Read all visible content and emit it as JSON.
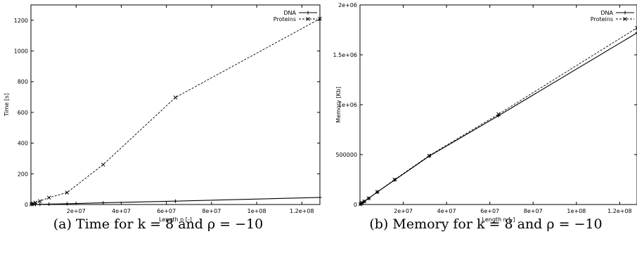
{
  "chart_data": [
    {
      "type": "line",
      "caption": "(a) Time for k = 8 and ρ = −10",
      "xlabel": "Length n [-]",
      "ylabel": "Time [s]",
      "xlim": [
        0,
        128000000
      ],
      "ylim": [
        0,
        1300
      ],
      "xticks": [
        20000000,
        40000000,
        60000000,
        80000000,
        100000000,
        120000000
      ],
      "xtick_labels": [
        "2e+07",
        "4e+07",
        "6e+07",
        "8e+07",
        "1e+08",
        "1.2e+08"
      ],
      "yticks": [
        0,
        200,
        400,
        600,
        800,
        1000,
        1200
      ],
      "ytick_labels": [
        "0",
        "200",
        "400",
        "600",
        "800",
        "1000",
        "1200"
      ],
      "legend_position": "top-right",
      "grid": false,
      "series": [
        {
          "name": "DNA",
          "style": "solid",
          "marker": "plus",
          "x": [
            250000,
            1000000,
            2000000,
            4000000,
            8000000,
            16000000,
            32000000,
            64000000,
            128000000
          ],
          "y": [
            0.1,
            0.3,
            0.6,
            1.2,
            2.5,
            5,
            11,
            22,
            46
          ]
        },
        {
          "name": "Proteins",
          "style": "dashed",
          "marker": "cross",
          "x": [
            250000,
            1000000,
            2000000,
            4000000,
            8000000,
            16000000,
            32000000,
            64000000,
            128000000
          ],
          "y": [
            2,
            6,
            12,
            22,
            45,
            78,
            260,
            697,
            1210
          ]
        }
      ]
    },
    {
      "type": "line",
      "caption": "(b) Memory for k = 8 and ρ = −10",
      "xlabel": "Length n [-]",
      "ylabel": "Memory [Kb]",
      "xlim": [
        0,
        128000000
      ],
      "ylim": [
        0,
        2000000
      ],
      "xticks": [
        20000000,
        40000000,
        60000000,
        80000000,
        100000000,
        120000000
      ],
      "xtick_labels": [
        "2e+07",
        "4e+07",
        "6e+07",
        "8e+07",
        "1e+08",
        "1.2e+08"
      ],
      "yticks": [
        0,
        500000,
        1000000,
        1500000,
        2000000
      ],
      "ytick_labels": [
        "0",
        "500000",
        "1e+06",
        "1.5e+06",
        "2e+06"
      ],
      "legend_position": "top-right",
      "grid": false,
      "series": [
        {
          "name": "DNA",
          "style": "solid",
          "marker": "plus",
          "x": [
            250000,
            1000000,
            2000000,
            4000000,
            8000000,
            16000000,
            32000000,
            64000000,
            128000000
          ],
          "y": [
            4000,
            15000,
            31000,
            61000,
            125000,
            245000,
            485000,
            890000,
            1720000
          ]
        },
        {
          "name": "Proteins",
          "style": "dashed",
          "marker": "cross",
          "x": [
            250000,
            1000000,
            2000000,
            4000000,
            8000000,
            16000000,
            32000000,
            64000000,
            128000000
          ],
          "y": [
            4000,
            15000,
            31000,
            62000,
            126000,
            250000,
            490000,
            905000,
            1770000
          ]
        }
      ]
    }
  ]
}
